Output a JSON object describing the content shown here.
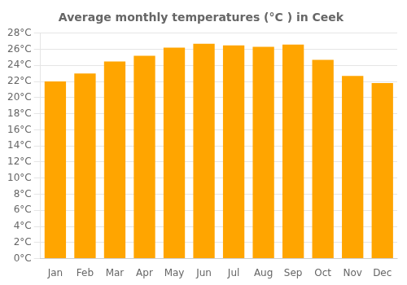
{
  "chart_data": {
    "type": "bar",
    "title": "Average monthly temperatures (°C ) in Ceek",
    "categories": [
      "Jan",
      "Feb",
      "Mar",
      "Apr",
      "May",
      "Jun",
      "Jul",
      "Aug",
      "Sep",
      "Oct",
      "Nov",
      "Dec"
    ],
    "values": [
      22.0,
      23.0,
      24.5,
      25.2,
      26.2,
      26.7,
      26.5,
      26.3,
      26.6,
      24.7,
      22.7,
      21.8
    ],
    "color": "#FFA500",
    "ylim": [
      0,
      28
    ],
    "yticks": [
      {
        "value": 0,
        "label": "0°C"
      },
      {
        "value": 2,
        "label": "2°C"
      },
      {
        "value": 4,
        "label": "4°C"
      },
      {
        "value": 6,
        "label": "6°C"
      },
      {
        "value": 8,
        "label": "8°C"
      },
      {
        "value": 10,
        "label": "10°C"
      },
      {
        "value": 12,
        "label": "12°C"
      },
      {
        "value": 14,
        "label": "14°C"
      },
      {
        "value": 16,
        "label": "16°C"
      },
      {
        "value": 18,
        "label": "18°C"
      },
      {
        "value": 20,
        "label": "20°C"
      },
      {
        "value": 22,
        "label": "22°C"
      },
      {
        "value": 24,
        "label": "24°C"
      },
      {
        "value": 26,
        "label": "26°C"
      },
      {
        "value": 28,
        "label": "28°C"
      }
    ],
    "grid": true
  }
}
